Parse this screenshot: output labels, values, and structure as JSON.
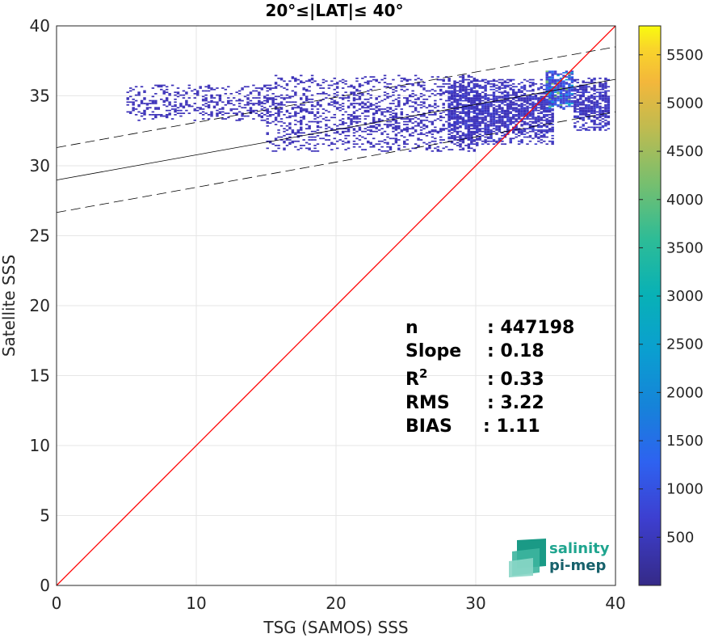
{
  "chart_data": {
    "type": "scatter",
    "title": "20°≤|LAT|≤ 40°",
    "xlabel": "TSG (SAMOS) SSS",
    "ylabel": "Satellite SSS",
    "xlim": [
      0,
      40
    ],
    "ylim": [
      0,
      40
    ],
    "xticks": [
      "0",
      "10",
      "20",
      "30",
      "40"
    ],
    "yticks": [
      "0",
      "5",
      "10",
      "15",
      "20",
      "25",
      "30",
      "35",
      "40"
    ],
    "grid": true,
    "series": [
      {
        "kind": "density",
        "colormap": "parula",
        "clouds": [
          {
            "x": [
              5.0,
              15.0
            ],
            "y": [
              33.2,
              35.8
            ],
            "density": "low"
          },
          {
            "x": [
              15.0,
              30.0
            ],
            "y": [
              31.0,
              36.5
            ],
            "density": "low"
          },
          {
            "x": [
              28.0,
              35.5
            ],
            "y": [
              31.5,
              36.2
            ],
            "density": "medium"
          },
          {
            "x": [
              35.0,
              37.0
            ],
            "y": [
              34.0,
              36.8
            ],
            "density": "high"
          },
          {
            "x": [
              37.0,
              39.5
            ],
            "y": [
              32.5,
              36.3
            ],
            "density": "medium"
          }
        ]
      },
      {
        "kind": "line",
        "role": "identity",
        "color": "#ff0000",
        "points": [
          [
            0,
            0
          ],
          [
            40,
            40
          ]
        ]
      },
      {
        "kind": "line",
        "role": "regression",
        "color": "#000000",
        "style": "solid",
        "points": [
          [
            0,
            28.98
          ],
          [
            40,
            36.18
          ]
        ]
      },
      {
        "kind": "line",
        "role": "regression-upper",
        "color": "#000000",
        "style": "dashed",
        "points": [
          [
            0,
            31.3
          ],
          [
            40,
            38.5
          ]
        ]
      },
      {
        "kind": "line",
        "role": "regression-lower",
        "color": "#000000",
        "style": "dashed",
        "points": [
          [
            0,
            26.66
          ],
          [
            40,
            33.86
          ]
        ]
      }
    ],
    "colorbar": {
      "colormap": "parula",
      "range": [
        0,
        5800
      ],
      "ticks": [
        "500",
        "1000",
        "1500",
        "2000",
        "2500",
        "3000",
        "3500",
        "4000",
        "4500",
        "5000",
        "5500"
      ]
    },
    "stats": [
      {
        "label": "n",
        "value": ": 447198"
      },
      {
        "label": "Slope",
        "value": ": 0.18"
      },
      {
        "label": "R",
        "sup": "2",
        "value": ": 0.33"
      },
      {
        "label": "RMS",
        "value": ": 3.22"
      },
      {
        "label": "BIAS",
        "value": ": 1.11"
      }
    ]
  },
  "logo": {
    "line1": "salinity",
    "line2": "pi-mep"
  }
}
